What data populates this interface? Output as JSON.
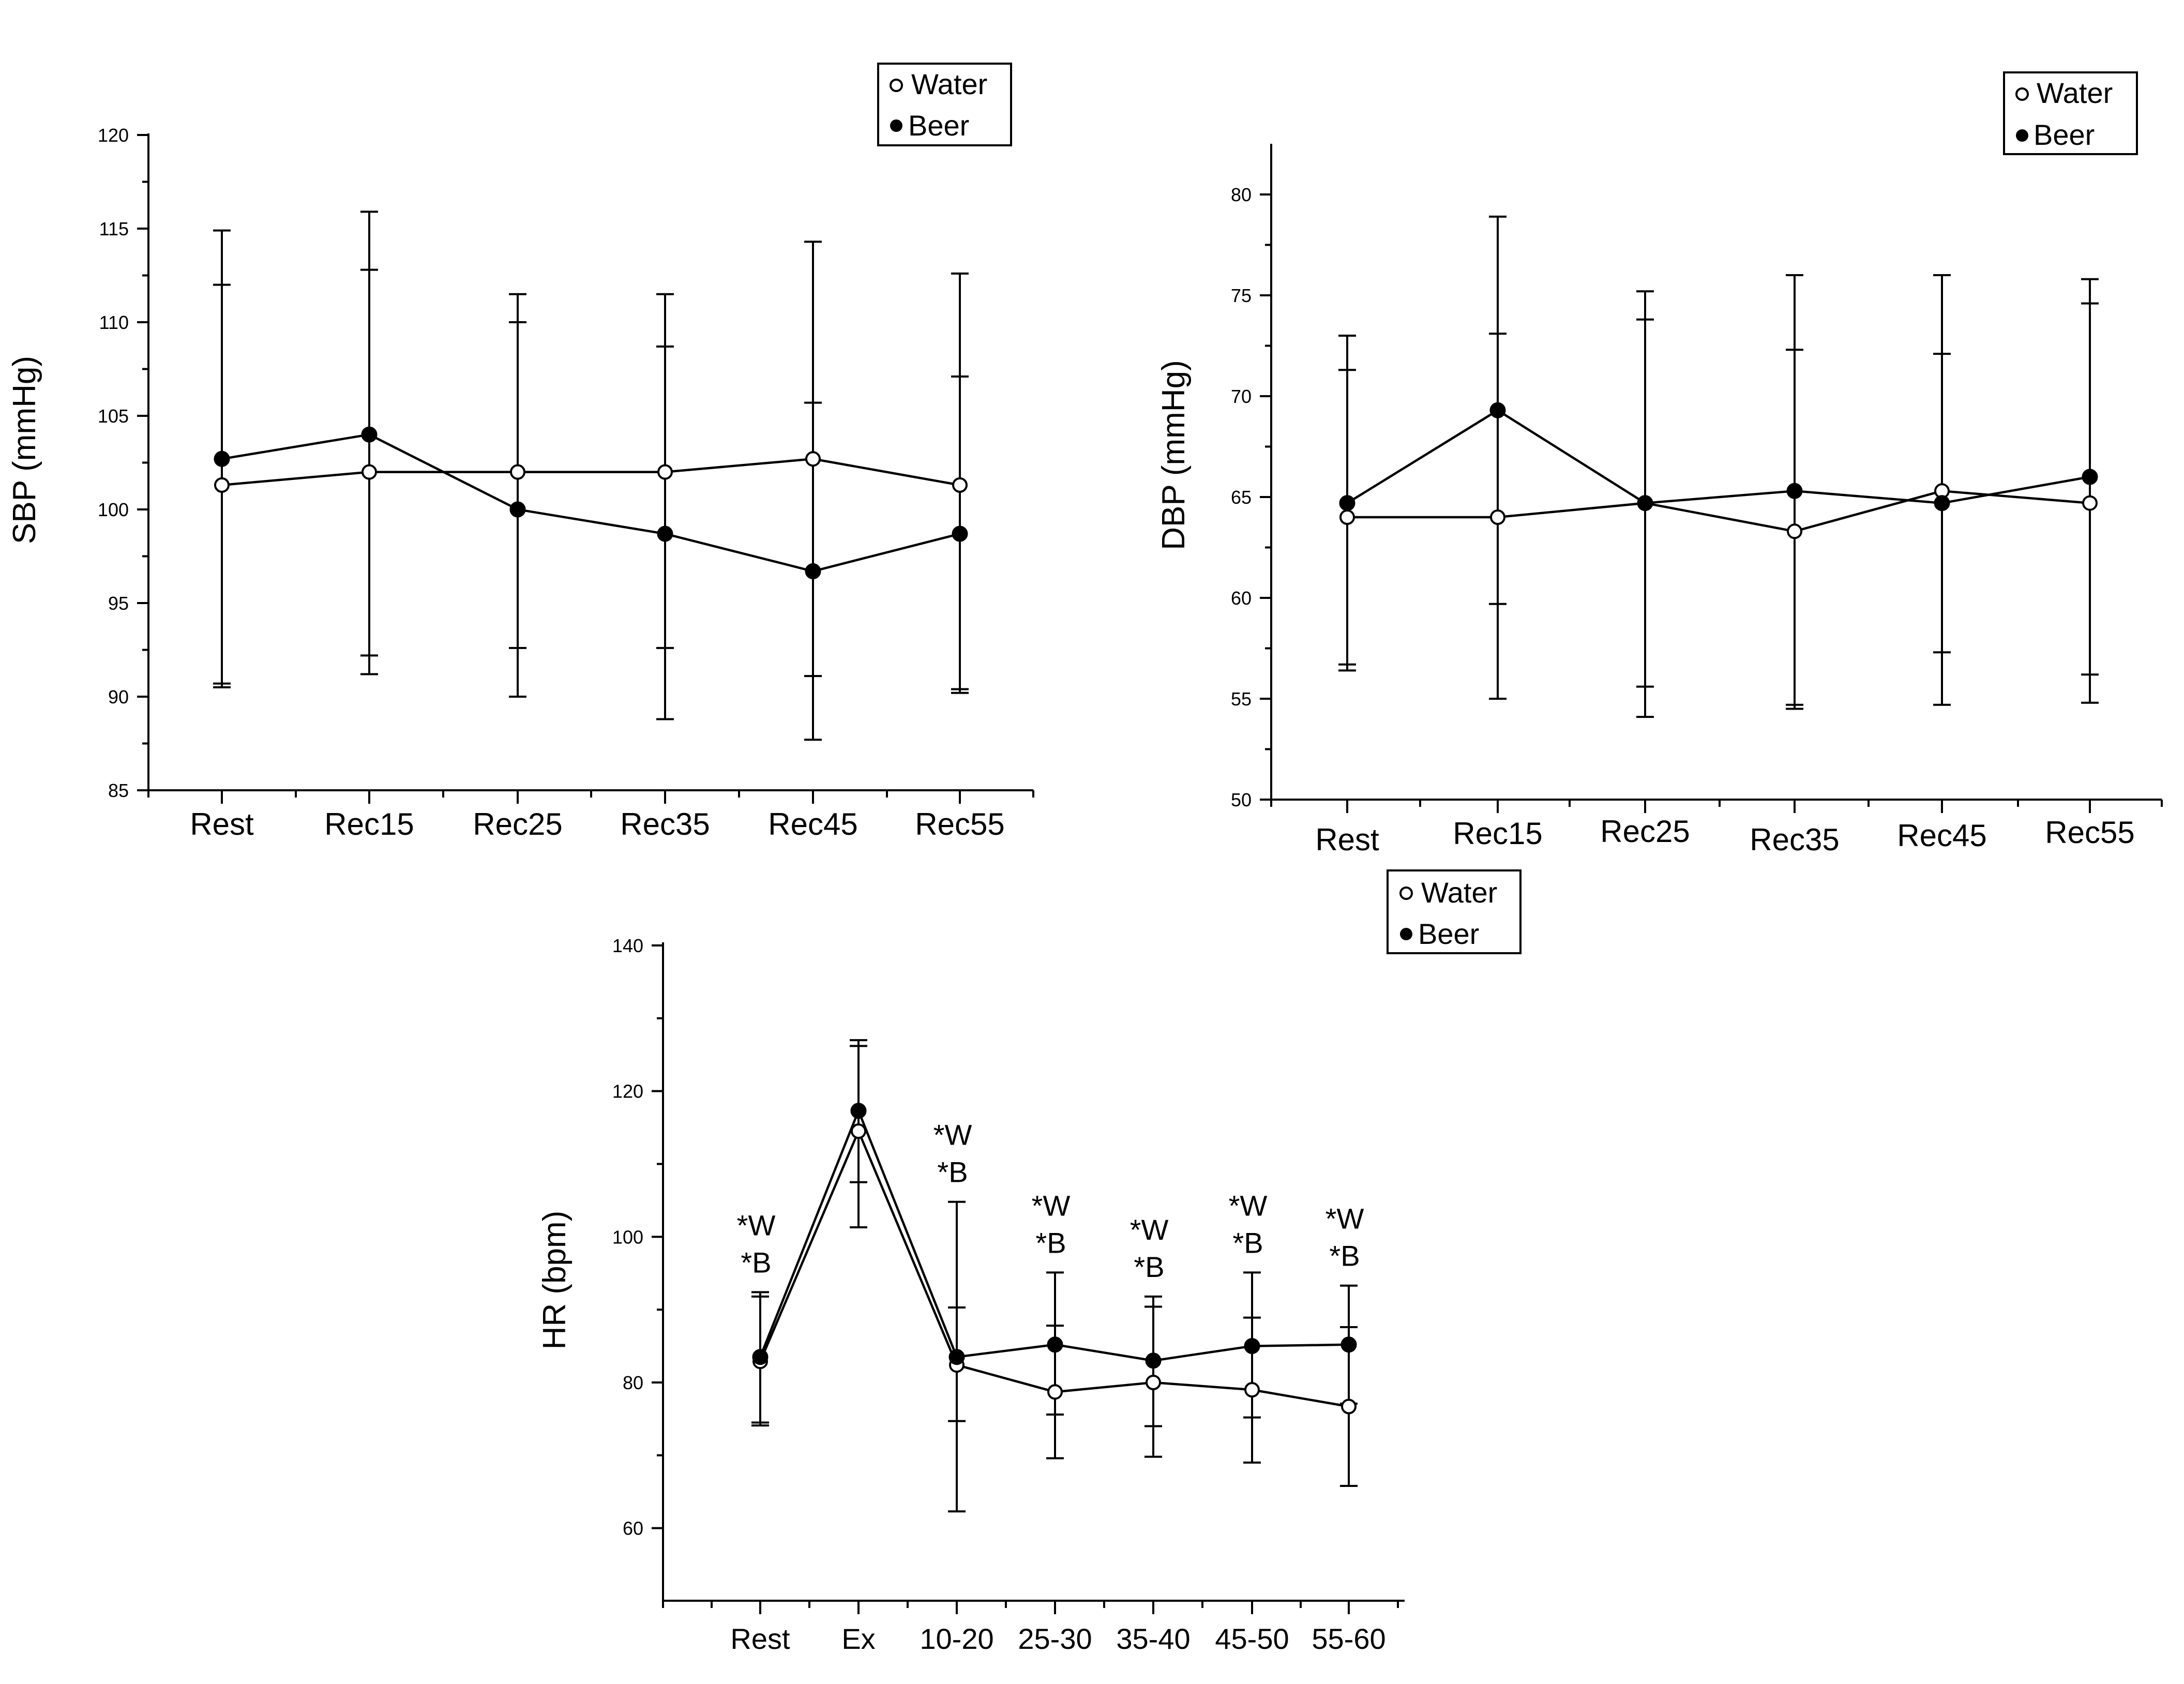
{
  "figure": {
    "panels": [
      {
        "id": "sbp",
        "ylabel": "SBP (mmHg)",
        "legend": {
          "water": "Water",
          "beer": "Beer"
        }
      },
      {
        "id": "dbp",
        "ylabel": "DBP (mmHg)",
        "legend": {
          "water": "Water",
          "beer": "Beer"
        }
      },
      {
        "id": "hr",
        "ylabel": "HR (bpm)",
        "legend": {
          "water": "Water",
          "beer": "Beer"
        }
      }
    ]
  },
  "chart_data": [
    {
      "type": "line",
      "ylabel": "SBP (mmHg)",
      "xlabel": "",
      "categories": [
        "Rest",
        "Rec15",
        "Rec25",
        "Rec35",
        "Rec45",
        "Rec55"
      ],
      "ylim": [
        85,
        120
      ],
      "yticks": [
        85,
        90,
        95,
        100,
        105,
        110,
        115,
        120
      ],
      "legend_position": "top-right",
      "grid": false,
      "series": [
        {
          "name": "Water",
          "marker": "open-circle",
          "values": [
            101.3,
            102.0,
            102.0,
            102.0,
            102.7,
            101.3
          ],
          "err_low": [
            90.7,
            92.2,
            92.6,
            92.6,
            91.1,
            90.4
          ],
          "err_high": [
            112.0,
            112.8,
            111.5,
            111.5,
            114.3,
            112.6
          ]
        },
        {
          "name": "Beer",
          "marker": "filled-circle",
          "values": [
            102.7,
            104.0,
            100.0,
            98.7,
            96.7,
            98.7
          ],
          "err_low": [
            90.5,
            91.2,
            90.0,
            88.8,
            87.7,
            90.2
          ],
          "err_high": [
            114.9,
            115.9,
            110.0,
            108.7,
            105.7,
            107.1
          ]
        }
      ],
      "annotations": []
    },
    {
      "type": "line",
      "ylabel": "DBP (mmHg)",
      "xlabel": "",
      "categories": [
        "Rest",
        "Rec15",
        "Rec25",
        "Rec35",
        "Rec45",
        "Rec55"
      ],
      "ylim": [
        50,
        80
      ],
      "yticks": [
        50,
        55,
        60,
        65,
        70,
        75,
        80
      ],
      "legend_position": "top-right",
      "grid": false,
      "series": [
        {
          "name": "Water",
          "marker": "open-circle",
          "values": [
            64.0,
            64.0,
            64.7,
            63.3,
            65.3,
            64.7
          ],
          "err_low": [
            56.7,
            55.0,
            55.6,
            54.7,
            54.7,
            54.8
          ],
          "err_high": [
            71.3,
            73.1,
            75.2,
            72.3,
            76.0,
            74.6
          ]
        },
        {
          "name": "Beer",
          "marker": "filled-circle",
          "values": [
            64.7,
            69.3,
            64.7,
            65.3,
            64.7,
            66.0
          ],
          "err_low": [
            56.4,
            59.7,
            54.1,
            54.5,
            57.3,
            56.2
          ],
          "err_high": [
            73.0,
            78.9,
            73.8,
            76.0,
            72.1,
            75.8
          ]
        }
      ],
      "annotations": []
    },
    {
      "type": "line",
      "ylabel": "HR (bpm)",
      "xlabel": "",
      "categories": [
        "Rest",
        "Ex",
        "10-20",
        "25-30",
        "35-40",
        "45-50",
        "55-60"
      ],
      "ylim": [
        50,
        140
      ],
      "yticks": [
        60,
        80,
        100,
        120,
        140
      ],
      "legend_position": "top-right",
      "grid": false,
      "series": [
        {
          "name": "Water",
          "marker": "open-circle",
          "values": [
            82.9,
            114.5,
            82.4,
            78.7,
            80.0,
            79.0,
            76.7
          ],
          "err_low": [
            74.5,
            101.3,
            62.3,
            69.6,
            69.8,
            69.0,
            65.8
          ],
          "err_high": [
            91.8,
            127.0,
            90.3,
            87.8,
            90.4,
            88.9,
            87.6
          ]
        },
        {
          "name": "Beer",
          "marker": "filled-circle",
          "values": [
            83.5,
            117.3,
            83.5,
            85.2,
            83.0,
            85.0,
            85.2
          ],
          "err_low": [
            74.1,
            107.5,
            74.7,
            75.6,
            74.0,
            75.2,
            77.1
          ],
          "err_high": [
            92.4,
            126.2,
            104.8,
            95.1,
            91.8,
            95.1,
            93.3
          ]
        }
      ],
      "annotations": [
        {
          "category": "Rest",
          "lines": [
            "*W",
            "*B"
          ]
        },
        {
          "category": "10-20",
          "lines": [
            "*W",
            "*B"
          ]
        },
        {
          "category": "25-30",
          "lines": [
            "*W",
            "*B"
          ]
        },
        {
          "category": "35-40",
          "lines": [
            "*W",
            "*B"
          ]
        },
        {
          "category": "45-50",
          "lines": [
            "*W",
            "*B"
          ]
        },
        {
          "category": "55-60",
          "lines": [
            "*W",
            "*B"
          ]
        }
      ]
    }
  ]
}
